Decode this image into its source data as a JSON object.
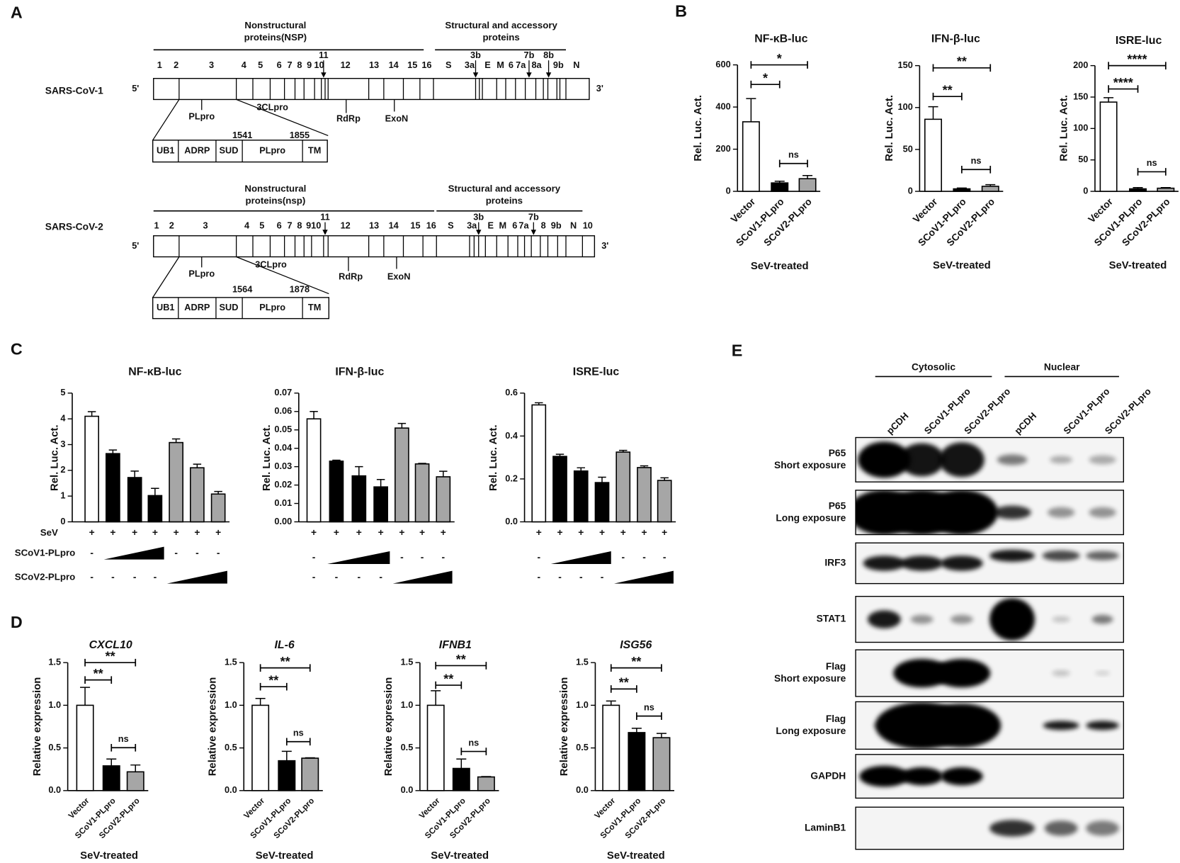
{
  "panel_labels": [
    "A",
    "B",
    "C",
    "D",
    "E"
  ],
  "diagram": {
    "genomes": [
      {
        "name": "SARS-CoV-1",
        "five": "5'",
        "three": "3'",
        "headers": [
          [
            "Nonstructural",
            "proteins(NSP)"
          ],
          [
            "Structural and accessory",
            "proteins"
          ]
        ],
        "genes": [
          "1",
          "2",
          "3",
          "4",
          "5",
          "6",
          "7",
          "8",
          "9",
          "10",
          "11",
          "12",
          "13",
          "14",
          "15",
          "16",
          "S",
          "3a",
          "3b",
          "E",
          "M",
          "6",
          "7a",
          "7b",
          "8a",
          "8b",
          "9b",
          "N"
        ],
        "enzymes": [
          "PLpro",
          "3CLpro",
          "RdRp",
          "ExoN"
        ],
        "domains": [
          "UB1",
          "ADRP",
          "SUD",
          "PLpro",
          "TM"
        ],
        "positions": [
          1541,
          1855
        ]
      },
      {
        "name": "SARS-CoV-2",
        "five": "5'",
        "three": "3'",
        "headers": [
          [
            "Nonstructural",
            "proteins(nsp)"
          ],
          [
            "Structural and accessory",
            "proteins"
          ]
        ],
        "genes": [
          "1",
          "2",
          "3",
          "4",
          "5",
          "6",
          "7",
          "8",
          "9",
          "10",
          "11",
          "12",
          "13",
          "14",
          "15",
          "16",
          "S",
          "3a",
          "3b",
          "E",
          "M",
          "6",
          "7a",
          "7b",
          "8",
          "9b",
          "N",
          "10"
        ],
        "enzymes": [
          "PLpro",
          "3CLpro",
          "RdRp",
          "ExoN"
        ],
        "domains": [
          "UB1",
          "ADRP",
          "SUD",
          "PLpro",
          "TM"
        ],
        "positions": [
          1564,
          1878
        ]
      }
    ]
  },
  "chart_data": [
    {
      "type": "bar",
      "title": "NF-κB-luc",
      "ylabel": "Rel. Luc. Act.",
      "xlabel": "SeV-treated",
      "categories": [
        "Vector",
        "SCoV1-PLpro",
        "SCoV2-PLpro"
      ],
      "values": [
        330,
        40,
        60
      ],
      "errors": [
        110,
        8,
        15
      ],
      "colors": [
        "#ffffff",
        "#000000",
        "#a6a6a6"
      ],
      "ylim": [
        0,
        600
      ],
      "yticks": [
        0,
        200,
        400,
        600
      ],
      "significance": [
        "*",
        "*",
        "ns"
      ]
    },
    {
      "type": "bar",
      "title": "IFN-β-luc",
      "ylabel": "Rel. Luc. Act.",
      "xlabel": "SeV-treated",
      "categories": [
        "Vector",
        "SCoV1-PLpro",
        "SCoV2-PLpro"
      ],
      "values": [
        86,
        3,
        6
      ],
      "errors": [
        15,
        1,
        2
      ],
      "colors": [
        "#ffffff",
        "#000000",
        "#a6a6a6"
      ],
      "ylim": [
        0,
        150
      ],
      "yticks": [
        0,
        50,
        100,
        150
      ],
      "significance": [
        "**",
        "**",
        "ns"
      ]
    },
    {
      "type": "bar",
      "title": "ISRE-luc",
      "ylabel": "Rel. Luc. Act.",
      "xlabel": "SeV-treated",
      "categories": [
        "Vector",
        "SCoV1-PLpro",
        "SCoV2-PLpro"
      ],
      "values": [
        142,
        4,
        5
      ],
      "errors": [
        7,
        2,
        1
      ],
      "colors": [
        "#ffffff",
        "#000000",
        "#a6a6a6"
      ],
      "ylim": [
        0,
        200
      ],
      "yticks": [
        0,
        50,
        100,
        150,
        200
      ],
      "significance": [
        "****",
        "****",
        "ns"
      ]
    },
    {
      "type": "bar",
      "title": "NF-κB-luc",
      "ylabel": "Rel. Luc. Act.",
      "categories": [
        null,
        null,
        null,
        null,
        null,
        null,
        null
      ],
      "values": [
        4.1,
        2.65,
        1.72,
        1.02,
        3.08,
        2.1,
        1.08
      ],
      "errors": [
        0.18,
        0.14,
        0.25,
        0.28,
        0.14,
        0.14,
        0.1
      ],
      "colors": [
        "#ffffff",
        "#000000",
        "#000000",
        "#000000",
        "#a6a6a6",
        "#a6a6a6",
        "#a6a6a6"
      ],
      "ylim": [
        0,
        5
      ],
      "yticks": [
        0,
        1,
        2,
        3,
        4,
        5
      ],
      "treatment_names": [
        "SeV",
        "SCoV1-PLpro",
        "SCoV2-PLpro"
      ],
      "treatments": [
        [
          "+",
          "+",
          "+",
          "+",
          "+",
          "+",
          "+"
        ],
        [
          "-",
          null,
          null,
          null,
          "-",
          "-",
          "-"
        ],
        [
          "-",
          "-",
          "-",
          "-",
          null,
          null,
          null
        ]
      ]
    },
    {
      "type": "bar",
      "title": "IFN-β-luc",
      "ylabel": "Rel. Luc. Act.",
      "categories": [
        null,
        null,
        null,
        null,
        null,
        null,
        null
      ],
      "values": [
        0.056,
        0.033,
        0.025,
        0.019,
        0.051,
        0.0315,
        0.0245
      ],
      "errors": [
        0.004,
        0.0005,
        0.005,
        0.004,
        0.0025,
        0.0003,
        0.003
      ],
      "colors": [
        "#ffffff",
        "#000000",
        "#000000",
        "#000000",
        "#a6a6a6",
        "#a6a6a6",
        "#a6a6a6"
      ],
      "ylim": [
        0,
        0.07
      ],
      "yticks": [
        {
          "value": 0,
          "label": "0.00"
        },
        {
          "value": 0.01,
          "label": "0.01"
        },
        {
          "value": 0.02,
          "label": "0.02"
        },
        {
          "value": 0.03,
          "label": "0.03"
        },
        {
          "value": 0.04,
          "label": "0.04"
        },
        {
          "value": 0.05,
          "label": "0.05"
        },
        {
          "value": 0.06,
          "label": "0.06"
        },
        {
          "value": 0.07,
          "label": "0.07"
        }
      ],
      "treatments": [
        [
          "+",
          "+",
          "+",
          "+",
          "+",
          "+",
          "+"
        ],
        [
          "-",
          null,
          null,
          null,
          "-",
          "-",
          "-"
        ],
        [
          "-",
          "-",
          "-",
          "-",
          null,
          null,
          null
        ]
      ]
    },
    {
      "type": "bar",
      "title": "ISRE-luc",
      "ylabel": "Rel. Luc. Act.",
      "categories": [
        null,
        null,
        null,
        null,
        null,
        null,
        null
      ],
      "values": [
        0.545,
        0.305,
        0.237,
        0.183,
        0.325,
        0.253,
        0.193
      ],
      "errors": [
        0.01,
        0.01,
        0.015,
        0.025,
        0.008,
        0.008,
        0.012
      ],
      "colors": [
        "#ffffff",
        "#000000",
        "#000000",
        "#000000",
        "#a6a6a6",
        "#a6a6a6",
        "#a6a6a6"
      ],
      "ylim": [
        0,
        0.6
      ],
      "yticks": [
        {
          "value": 0,
          "label": "0.0"
        },
        {
          "value": 0.2,
          "label": "0.2"
        },
        {
          "value": 0.4,
          "label": "0.4"
        },
        {
          "value": 0.6,
          "label": "0.6"
        }
      ],
      "treatments": [
        [
          "+",
          "+",
          "+",
          "+",
          "+",
          "+",
          "+"
        ],
        [
          "-",
          null,
          null,
          null,
          "-",
          "-",
          "-"
        ],
        [
          "-",
          "-",
          "-",
          "-",
          null,
          null,
          null
        ]
      ]
    },
    {
      "type": "bar",
      "title": "CXCL10",
      "title_style": "italic",
      "ylabel": "Relative expression",
      "xlabel": "SeV-treated",
      "categories": [
        "Vector",
        "SCoV1-PLpro",
        "SCoV2-PLpro"
      ],
      "values": [
        1.0,
        0.29,
        0.22
      ],
      "errors": [
        0.21,
        0.08,
        0.08
      ],
      "colors": [
        "#ffffff",
        "#000000",
        "#a6a6a6"
      ],
      "ylim": [
        0,
        1.5
      ],
      "yticks": [
        {
          "value": 0,
          "label": "0.0"
        },
        {
          "value": 0.5,
          "label": "0.5"
        },
        {
          "value": 1,
          "label": "1.0"
        },
        {
          "value": 1.5,
          "label": "1.5"
        }
      ],
      "significance": [
        "**",
        "**",
        "ns"
      ]
    },
    {
      "type": "bar",
      "title": "IL-6",
      "title_style": "italic",
      "ylabel": "Relative expression",
      "xlabel": "SeV-treated",
      "categories": [
        "Vector",
        "SCoV1-PLpro",
        "SCoV2-PLpro"
      ],
      "values": [
        1.0,
        0.35,
        0.38
      ],
      "errors": [
        0.08,
        0.11,
        0.005
      ],
      "colors": [
        "#ffffff",
        "#000000",
        "#a6a6a6"
      ],
      "ylim": [
        0,
        1.5
      ],
      "yticks": [
        {
          "value": 0,
          "label": "0.0"
        },
        {
          "value": 0.5,
          "label": "0.5"
        },
        {
          "value": 1,
          "label": "1.0"
        },
        {
          "value": 1.5,
          "label": "1.5"
        }
      ],
      "significance": [
        "**",
        "**",
        "ns"
      ]
    },
    {
      "type": "bar",
      "title": "IFNB1",
      "title_style": "italic",
      "ylabel": "Relative expression",
      "xlabel": "SeV-treated",
      "categories": [
        "Vector",
        "SCoV1-PLpro",
        "SCoV2-PLpro"
      ],
      "values": [
        1.0,
        0.26,
        0.16
      ],
      "errors": [
        0.17,
        0.11,
        0.005
      ],
      "colors": [
        "#ffffff",
        "#000000",
        "#a6a6a6"
      ],
      "ylim": [
        0,
        1.5
      ],
      "yticks": [
        {
          "value": 0,
          "label": "0.0"
        },
        {
          "value": 0.5,
          "label": "0.5"
        },
        {
          "value": 1,
          "label": "1.0"
        },
        {
          "value": 1.5,
          "label": "1.5"
        }
      ],
      "significance": [
        "**",
        "**",
        "ns"
      ]
    },
    {
      "type": "bar",
      "title": "ISG56",
      "title_style": "italic",
      "ylabel": "Relative expression",
      "xlabel": "SeV-treated",
      "categories": [
        "Vector",
        "SCoV1-PLpro",
        "SCoV2-PLpro"
      ],
      "values": [
        1.0,
        0.68,
        0.62
      ],
      "errors": [
        0.05,
        0.05,
        0.05
      ],
      "colors": [
        "#ffffff",
        "#000000",
        "#a6a6a6"
      ],
      "ylim": [
        0,
        1.5
      ],
      "yticks": [
        {
          "value": 0,
          "label": "0.0"
        },
        {
          "value": 0.5,
          "label": "0.5"
        },
        {
          "value": 1,
          "label": "1.0"
        },
        {
          "value": 1.5,
          "label": "1.5"
        }
      ],
      "significance": [
        "**",
        "**",
        "ns"
      ]
    }
  ],
  "blot": {
    "groups": [
      "Cytosolic",
      "Nuclear"
    ],
    "lanes": [
      "pCDH",
      "SCoV1-PLpro",
      "SCoV2-PLpro",
      "pCDH",
      "SCoV1-PLpro",
      "SCoV2-PLpro"
    ],
    "rows": [
      [
        "P65",
        "Short exposure"
      ],
      [
        "P65",
        "Long exposure"
      ],
      [
        "IRF3"
      ],
      [
        "STAT1"
      ],
      [
        "Flag",
        "Short exposure"
      ],
      [
        "Flag",
        "Long exposure"
      ],
      [
        "GAPDH"
      ],
      [
        "LaminB1"
      ]
    ]
  }
}
